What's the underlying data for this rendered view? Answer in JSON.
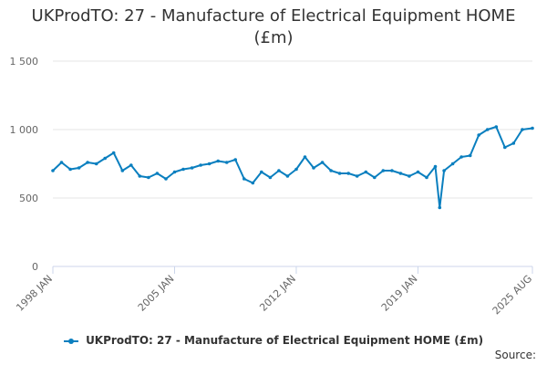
{
  "title_lines": [
    "UKProdTO: 27 - Manufacture of Electrical Equipment HOME",
    "(£m)"
  ],
  "source_label": "Source:",
  "colors": {
    "series": "#0a7fbf",
    "grid": "#e6e6e6",
    "axis": "#ccd6eb",
    "text": "#666666"
  },
  "chart_data": {
    "type": "line",
    "title": "UKProdTO: 27 - Manufacture of Electrical Equipment HOME (£m)",
    "xlabel": "",
    "ylabel": "",
    "ylim": [
      0,
      1500
    ],
    "y_ticks": [
      {
        "value": 0,
        "label": "0"
      },
      {
        "value": 500,
        "label": "500"
      },
      {
        "value": 1000,
        "label": "1 000"
      },
      {
        "value": 1500,
        "label": "1 500"
      }
    ],
    "x_range": [
      "1998-01",
      "2025-08"
    ],
    "x_ticks": [
      {
        "date": "1998-01",
        "label": "1998 JAN"
      },
      {
        "date": "2005-01",
        "label": "2005 JAN"
      },
      {
        "date": "2012-01",
        "label": "2012 JAN"
      },
      {
        "date": "2019-01",
        "label": "2019 JAN"
      },
      {
        "date": "2025-08",
        "label": "2025 AUG"
      }
    ],
    "grid": true,
    "legend_position": "bottom",
    "series": [
      {
        "name": "UKProdTO: 27 - Manufacture of Electrical Equipment HOME (£m)",
        "x": [
          "1998-01",
          "1998-07",
          "1999-01",
          "1999-07",
          "2000-01",
          "2000-07",
          "2001-01",
          "2001-07",
          "2002-01",
          "2002-07",
          "2003-01",
          "2003-07",
          "2004-01",
          "2004-07",
          "2005-01",
          "2005-07",
          "2006-01",
          "2006-07",
          "2007-01",
          "2007-07",
          "2008-01",
          "2008-07",
          "2009-01",
          "2009-07",
          "2010-01",
          "2010-07",
          "2011-01",
          "2011-07",
          "2012-01",
          "2012-07",
          "2013-01",
          "2013-07",
          "2014-01",
          "2014-07",
          "2015-01",
          "2015-07",
          "2016-01",
          "2016-07",
          "2017-01",
          "2017-07",
          "2018-01",
          "2018-07",
          "2019-01",
          "2019-07",
          "2020-01",
          "2020-04",
          "2020-07",
          "2021-01",
          "2021-07",
          "2022-01",
          "2022-07",
          "2023-01",
          "2023-07",
          "2024-01",
          "2024-07",
          "2025-01",
          "2025-08"
        ],
        "values": [
          700,
          760,
          710,
          720,
          760,
          750,
          790,
          830,
          700,
          740,
          660,
          650,
          680,
          640,
          690,
          710,
          720,
          740,
          750,
          770,
          760,
          780,
          640,
          610,
          690,
          650,
          700,
          660,
          710,
          800,
          720,
          760,
          700,
          680,
          680,
          660,
          690,
          650,
          700,
          700,
          680,
          660,
          690,
          650,
          730,
          430,
          700,
          750,
          800,
          810,
          960,
          1000,
          1020,
          870,
          900,
          1000,
          1010
        ]
      }
    ]
  }
}
